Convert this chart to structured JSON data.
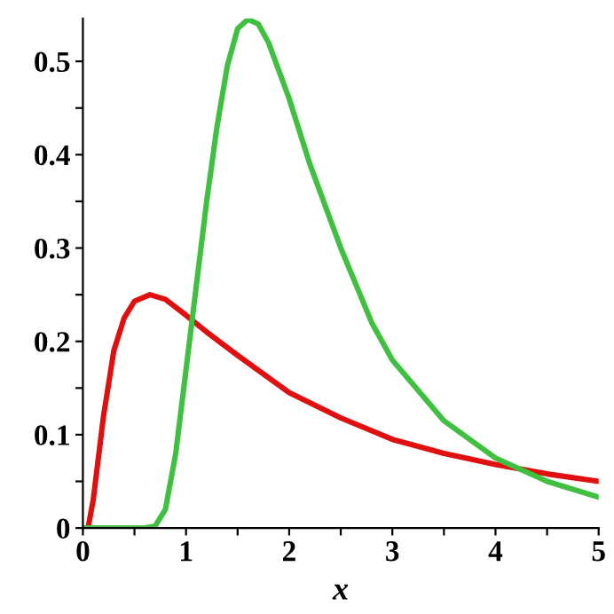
{
  "chart_data": {
    "type": "line",
    "xlabel": "x",
    "xlim": [
      0,
      5
    ],
    "ylim": [
      0,
      0.546
    ],
    "xticks": [
      0,
      {
        "value": 0.5,
        "label": null
      },
      1,
      {
        "value": 1.5,
        "label": null
      },
      2,
      {
        "value": 2.5,
        "label": null
      },
      3,
      {
        "value": 3.5,
        "label": null
      },
      4,
      {
        "value": 4.5,
        "label": null
      },
      5
    ],
    "yticks": [
      0,
      {
        "value": 0.05,
        "label": null
      },
      0.1,
      {
        "value": 0.15,
        "label": null
      },
      0.2,
      {
        "value": 0.25,
        "label": null
      },
      0.3,
      {
        "value": 0.35,
        "label": null
      },
      0.4,
      {
        "value": 0.45,
        "label": null
      },
      0.5
    ],
    "grid": false,
    "marker": "none",
    "line_style": "solid",
    "series": [
      {
        "color": "#e01010",
        "x": [
          0.05,
          0.1,
          0.2,
          0.3,
          0.4,
          0.5,
          0.65,
          0.8,
          1.0,
          1.2,
          1.5,
          2.0,
          2.5,
          3.0,
          3.5,
          4.0,
          4.5,
          5.0
        ],
        "values": [
          0,
          0.03,
          0.12,
          0.19,
          0.225,
          0.243,
          0.25,
          0.245,
          0.228,
          0.21,
          0.185,
          0.145,
          0.118,
          0.095,
          0.08,
          0.068,
          0.058,
          0.05
        ]
      },
      {
        "color": "#40c040",
        "x": [
          0,
          0.6,
          0.7,
          0.8,
          0.9,
          1.0,
          1.1,
          1.2,
          1.3,
          1.4,
          1.5,
          1.6,
          1.7,
          1.8,
          2.0,
          2.2,
          2.5,
          2.8,
          3.0,
          3.5,
          4.0,
          4.5,
          5.0
        ],
        "values": [
          0,
          0,
          0.002,
          0.02,
          0.08,
          0.17,
          0.26,
          0.35,
          0.43,
          0.495,
          0.535,
          0.545,
          0.54,
          0.52,
          0.46,
          0.39,
          0.3,
          0.22,
          0.18,
          0.115,
          0.075,
          0.05,
          0.033
        ]
      }
    ]
  }
}
